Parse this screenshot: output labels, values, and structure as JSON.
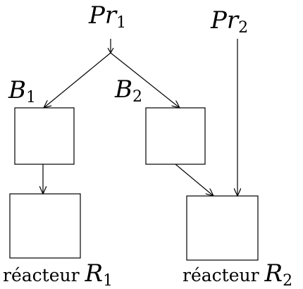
{
  "labels": {
    "pr1": {
      "main": "Pr",
      "sub": "1"
    },
    "pr2": {
      "main": "Pr",
      "sub": "2"
    },
    "b1": {
      "main": "B",
      "sub": "1"
    },
    "b2": {
      "main": "B",
      "sub": "2"
    },
    "r1": {
      "text": "réacteur ",
      "main": "R",
      "sub": "1"
    },
    "r2": {
      "text": "réacteur ",
      "main": "R",
      "sub": "2"
    }
  },
  "colors": {
    "stroke": "#000000",
    "background": "#ffffff"
  }
}
